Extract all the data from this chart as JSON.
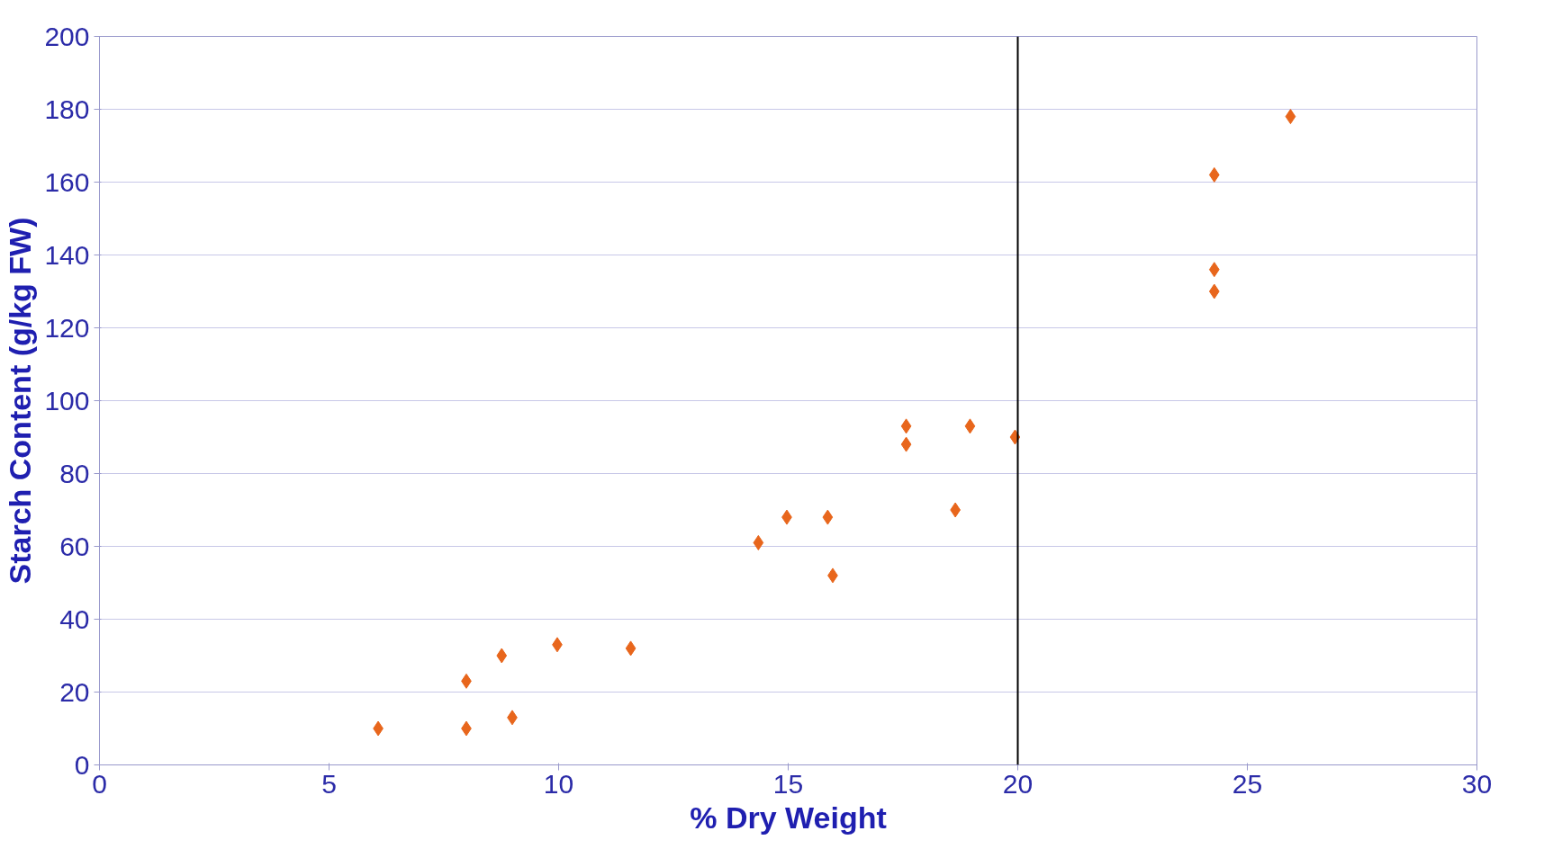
{
  "chart_data": {
    "type": "scatter",
    "xlabel": "% Dry Weight",
    "ylabel": "Starch Content (g/kg FW)",
    "x": [
      6.07,
      7.99,
      7.99,
      8.76,
      8.99,
      9.97,
      11.57,
      14.35,
      14.97,
      15.86,
      15.97,
      17.57,
      17.57,
      18.64,
      18.96,
      19.94,
      24.28,
      24.28,
      24.28,
      25.94
    ],
    "series": [
      {
        "color": "#e8661c",
        "values": [
          10,
          23,
          10,
          30,
          13,
          33,
          32,
          61,
          68,
          68,
          52,
          93,
          88,
          70,
          93,
          90,
          130,
          136,
          162,
          178
        ]
      }
    ],
    "xlim": [
      0,
      30
    ],
    "xticks": [
      0,
      5,
      10,
      15,
      20,
      25,
      30
    ],
    "ylim": [
      0,
      200
    ],
    "yticks": [
      0,
      20,
      40,
      60,
      80,
      100,
      120,
      140,
      160,
      180,
      200
    ],
    "grid": "y",
    "marker": "diamond",
    "ref_lines": [
      {
        "axis": "x",
        "value": 20,
        "color": "#000000"
      }
    ]
  }
}
